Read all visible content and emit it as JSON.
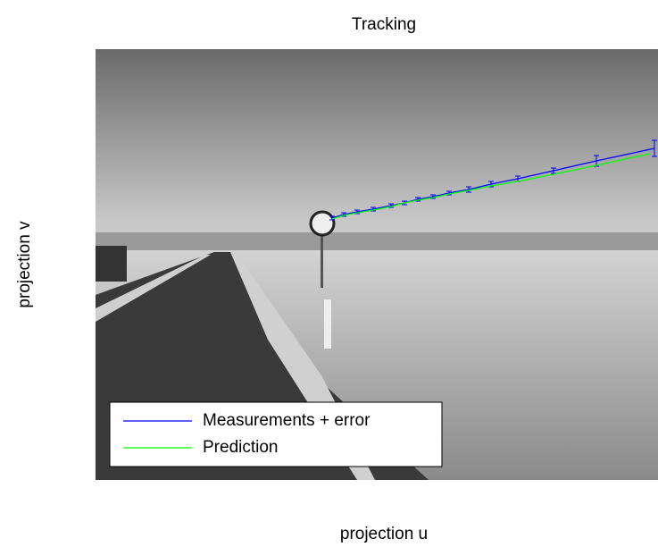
{
  "chart_data": {
    "type": "line",
    "title": "Tracking",
    "xlabel": "projection u",
    "ylabel": "projection v",
    "xlim": [
      0,
      630
    ],
    "ylim": [
      482,
      0
    ],
    "legend": "lower left",
    "series": [
      {
        "name": "Measurements + error",
        "color": "#0000ff",
        "x": [
          265,
          278,
          293,
          311,
          331,
          346,
          361,
          378,
          396,
          418,
          443,
          473,
          513,
          561,
          626
        ],
        "values": [
          189,
          185,
          182,
          179,
          175,
          172,
          168,
          165,
          161,
          157,
          151,
          145,
          136,
          125,
          111
        ],
        "errors": [
          2,
          2,
          2,
          2,
          2,
          2,
          2,
          2,
          2,
          3,
          3,
          3,
          3,
          6,
          9
        ]
      },
      {
        "name": "Prediction",
        "color": "#00ff00",
        "x": [
          265,
          278,
          293,
          311,
          331,
          346,
          361,
          378,
          396,
          418,
          443,
          473,
          513,
          561,
          621
        ],
        "values": [
          190,
          186,
          183,
          180,
          176,
          172,
          169,
          166,
          162,
          158,
          153,
          148,
          140,
          130,
          117
        ]
      }
    ]
  }
}
